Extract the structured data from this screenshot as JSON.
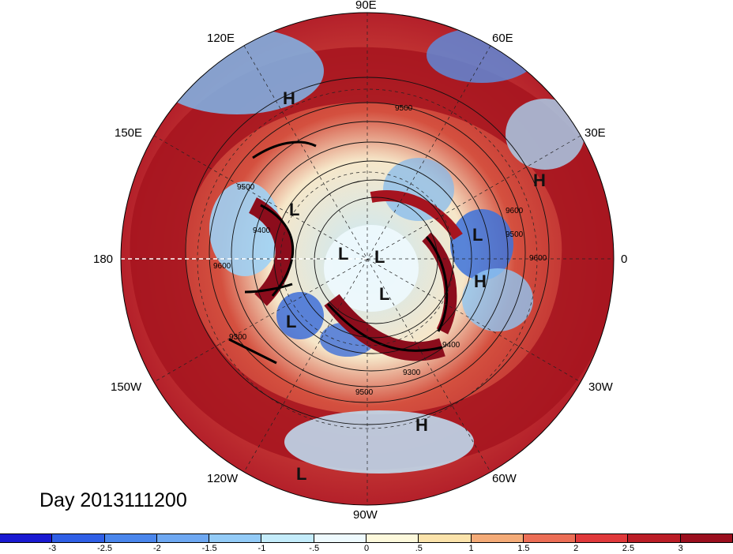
{
  "title": "Day 2013111200",
  "longitude_labels": [
    "90E",
    "60E",
    "30E",
    "0",
    "30W",
    "60W",
    "90W",
    "120W",
    "150W",
    "180",
    "150E",
    "120E"
  ],
  "contour_labels": [
    "9500",
    "9400",
    "9300",
    "9600",
    "9500",
    "9400",
    "9300",
    "9500",
    "9600",
    "9500",
    "9600"
  ],
  "pressure_centers": [
    "H",
    "H",
    "L",
    "L",
    "L",
    "L",
    "L",
    "H",
    "L",
    "H",
    "L"
  ],
  "colorbar": {
    "ticks": [
      "-3",
      "-2.5",
      "-2",
      "-1.5",
      "-1",
      "-.5",
      "0",
      ".5",
      "1",
      "1.5",
      "2",
      "2.5",
      "3"
    ],
    "colors": [
      "#1a1ad2",
      "#2f5fe6",
      "#4a86ec",
      "#6ea8f2",
      "#93cbf7",
      "#c4ecfb",
      "#eefafe",
      "#fdf9dc",
      "#fbe3ab",
      "#f4ab78",
      "#ec6e56",
      "#e0393b",
      "#bb1d26",
      "#9b0f1e"
    ]
  },
  "chart_data": {
    "type": "polar-stereographic map",
    "projection": "north polar stereographic",
    "field": "anomaly shading with geopotential height contours",
    "contour_values": [
      9300,
      9400,
      9500,
      9600
    ],
    "colorbar_range": [
      -3,
      3
    ],
    "colorbar_interval": 0.5
  }
}
